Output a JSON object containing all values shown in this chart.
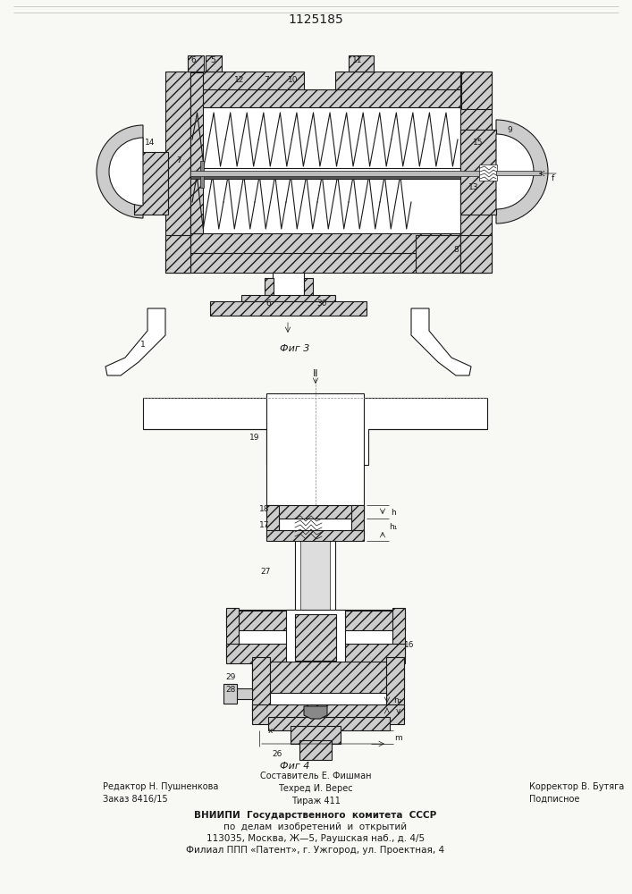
{
  "patent_number": "1125185",
  "fig3_label": "Фиг 3",
  "fig4_label": "Фиг 4",
  "footer_line1_left": "Редактор Н. Пушненкова",
  "footer_line1_center": "Составитель Е. Фишман",
  "footer_line1_right": "Корректор В. Бутяга",
  "footer_line2_left": "Заказ 8416/15",
  "footer_line2_center": "Техред И. Верес",
  "footer_line2_right": "Подписное",
  "footer_line3_center": "Тираж 411",
  "footer_org1": "ВНИИПИ  Государственного  комитета  СССР",
  "footer_org2": "по  делам  изобретений  и  открытий",
  "footer_org3": "113035, Москва, Ж—5, Раушская наб., д. 4/5",
  "footer_org4": "Филиал ППП «Патент», г. Ужгород, ул. Проектная, 4",
  "bg_color": "#f8f8f5",
  "line_color": "#1a1a1a"
}
